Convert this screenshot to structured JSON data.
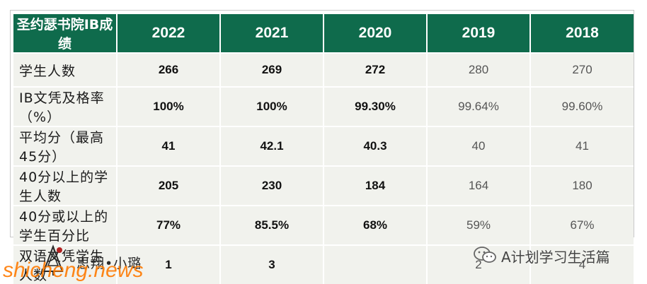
{
  "table": {
    "header": [
      "圣约瑟书院IB成绩",
      "2022",
      "2021",
      "2020",
      "2019",
      "2018"
    ],
    "rows": [
      {
        "label": "学生人数",
        "values": [
          "266",
          "269",
          "272",
          "280",
          "270"
        ]
      },
      {
        "label": "IB文凭及格率（%）",
        "values": [
          "100%",
          "100%",
          "99.30%",
          "99.64%",
          "99.60%"
        ]
      },
      {
        "label": "平均分（最高45分）",
        "values": [
          "41",
          "42.1",
          "40.3",
          "40",
          "41"
        ]
      },
      {
        "label": "40分以上的学生人数",
        "values": [
          "205",
          "230",
          "184",
          "164",
          "180"
        ]
      },
      {
        "label": "40分或以上的学生百分比",
        "values": [
          "77%",
          "85.5%",
          "68%",
          "59%",
          "67%"
        ]
      },
      {
        "label": "双语文凭学生人数",
        "values": [
          "1",
          "3",
          "",
          "2",
          "4"
        ]
      }
    ]
  },
  "footer": {
    "logo_text": "思翔•小璐",
    "site_watermark": "shicheng.news",
    "wechat_account": "A计划学习生活篇",
    "logo_icon": "pine-tree-logo-icon",
    "wechat_icon": "wechat-icon"
  },
  "colors": {
    "header_bg": "#0f6b4c",
    "cell_bg": "#f1f2ed",
    "watermark": "#ff7a00"
  }
}
